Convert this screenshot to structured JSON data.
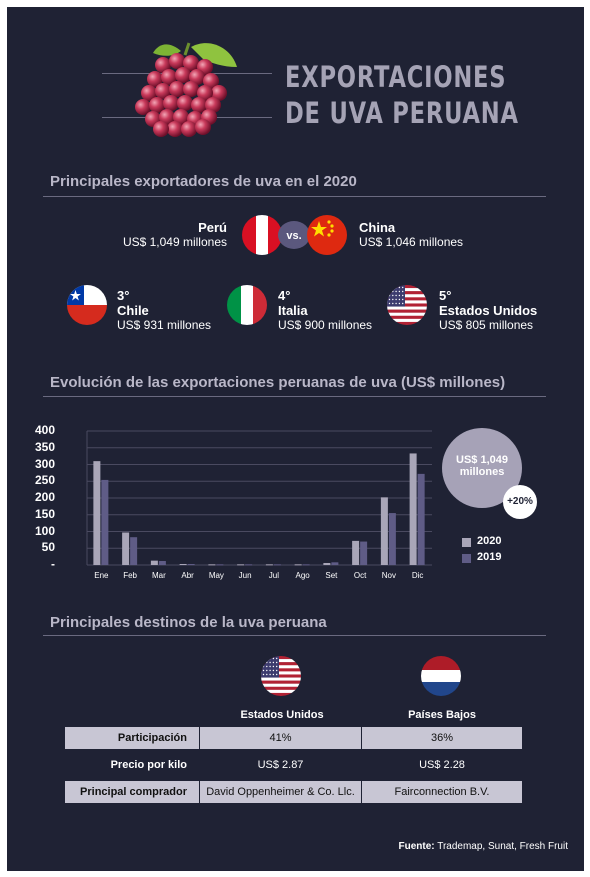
{
  "header": {
    "title_line1": "EXPORTACIONES",
    "title_line2": "DE UVA PERUANA"
  },
  "section1": {
    "title": "Principales exportadores de uva en el 2020",
    "vs_label": "vs.",
    "top": [
      {
        "country": "Perú",
        "value": "US$ 1,049 millones"
      },
      {
        "country": "China",
        "value": "US$ 1,046 millones"
      }
    ],
    "others": [
      {
        "rank": "3°",
        "country": "Chile",
        "value": "US$ 931 millones"
      },
      {
        "rank": "4°",
        "country": "Italia",
        "value": "US$ 900 millones"
      },
      {
        "rank": "5°",
        "country": "Estados Unidos",
        "value": "US$ 805 millones"
      }
    ]
  },
  "section2": {
    "title": "Evolución de las exportaciones peruanas de uva (US$ millones)",
    "bubble_value": "US$ 1,049 millones",
    "bubble_change": "+20%"
  },
  "chart_data": {
    "type": "bar",
    "title": "Evolución de las exportaciones peruanas de uva (US$ millones)",
    "categories": [
      "Ene",
      "Feb",
      "Mar",
      "Abr",
      "May",
      "Jun",
      "Jul",
      "Ago",
      "Set",
      "Oct",
      "Nov",
      "Dic"
    ],
    "series": [
      {
        "name": "2020",
        "color": "#a9a6b8",
        "values": [
          310,
          97,
          13,
          3,
          2,
          2,
          2,
          2,
          6,
          72,
          202,
          333
        ]
      },
      {
        "name": "2019",
        "color": "#5f5c86",
        "values": [
          254,
          83,
          12,
          3,
          2,
          2,
          2,
          2,
          8,
          70,
          155,
          272
        ]
      }
    ],
    "y_ticks": [
      "400",
      "350",
      "300",
      "250",
      "200",
      "150",
      "100",
      "50",
      "-"
    ],
    "ylim": [
      0,
      400
    ],
    "grid": true,
    "legend": "bottom-right"
  },
  "section3": {
    "title": "Principales destinos de la uva peruana",
    "destinations": [
      "Estados Unidos",
      "Países Bajos"
    ],
    "rows": [
      {
        "label": "Participación",
        "values": [
          "41%",
          "36%"
        ]
      },
      {
        "label": "Precio por kilo",
        "values": [
          "US$ 2.87",
          "US$ 2.28"
        ]
      },
      {
        "label": "Principal comprador",
        "values": [
          "David Oppenheimer & Co. Llc.",
          "Fairconnection B.V."
        ]
      }
    ]
  },
  "footer": {
    "source_label": "Fuente:",
    "source_text": "Trademap, Sunat, Fresh Fruit"
  },
  "colors": {
    "background": "#1f2234",
    "bar_2020": "#a9a6b8",
    "bar_2019": "#5f5c86",
    "title": "#a5a3b5"
  }
}
